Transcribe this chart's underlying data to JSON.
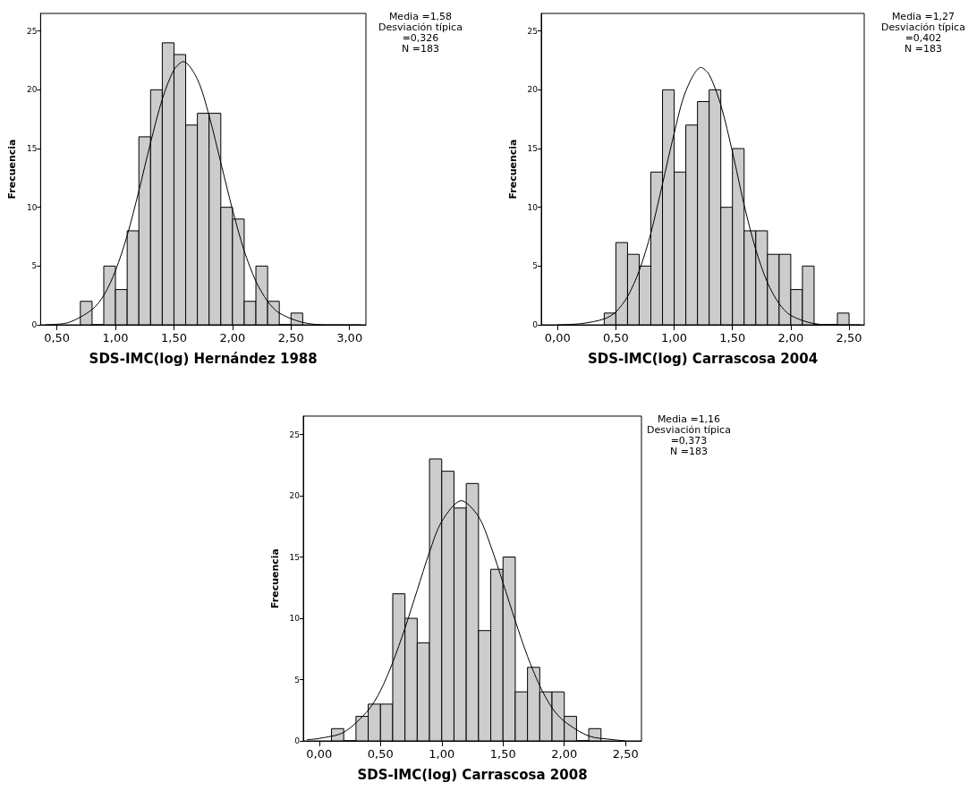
{
  "chart_data": [
    {
      "type": "histogram",
      "xlabel": "SDS-IMC(log) Hernández 1988",
      "ylabel": "Frecuencia",
      "annotations": [
        "Media =1,58\nDesviación típica\n=0,326\nN =183"
      ],
      "xlim": [
        0.36,
        3.14
      ],
      "ylim": [
        0,
        26.5
      ],
      "xticks": [
        {
          "value": 0.5,
          "label": "0,50"
        },
        {
          "value": 1,
          "label": "1,00"
        },
        {
          "value": 1.5,
          "label": "1,50"
        },
        {
          "value": 2,
          "label": "2,00"
        },
        {
          "value": 2.5,
          "label": "2,50"
        },
        {
          "value": 3,
          "label": "3,00"
        }
      ],
      "yticks": [
        0,
        5,
        10,
        15,
        20,
        25
      ],
      "grid": false,
      "series": [
        {
          "color": "#cccccc",
          "bins": [
            0.7,
            0.8,
            0.9,
            1.0,
            1.1,
            1.2,
            1.3,
            1.4,
            1.5,
            1.6,
            1.7,
            1.8,
            1.9,
            2.0,
            2.1,
            2.2,
            2.3,
            2.4,
            2.5,
            2.6
          ],
          "values": [
            2,
            0,
            5,
            3,
            8,
            16,
            20,
            24,
            23,
            17,
            18,
            18,
            10,
            9,
            2,
            5,
            2,
            0,
            1
          ]
        },
        {
          "type": "line",
          "color": "#000000",
          "marker": "none",
          "x": [
            0.4,
            0.6,
            0.8,
            0.9,
            1.0,
            1.1,
            1.2,
            1.3,
            1.4,
            1.5,
            1.58,
            1.7,
            1.8,
            1.9,
            2.0,
            2.1,
            2.2,
            2.3,
            2.4,
            2.6,
            2.8,
            3.1
          ],
          "values": [
            0.0,
            0.2,
            1.3,
            2.5,
            4.6,
            7.6,
            11.4,
            15.5,
            19.2,
            21.7,
            22.4,
            20.9,
            17.8,
            13.8,
            9.8,
            6.3,
            3.7,
            2.0,
            1.0,
            0.2,
            0.0,
            0.0
          ]
        }
      ]
    },
    {
      "type": "histogram",
      "xlabel": "SDS-IMC(log) Carrascosa 2004",
      "ylabel": "Frecuencia",
      "annotations": [
        "Media =1,27\nDesviación típica\n=0,402\nN =183"
      ],
      "xlim": [
        -0.14,
        2.63
      ],
      "ylim": [
        0,
        26.5
      ],
      "xticks": [
        {
          "value": 0,
          "label": "0,00"
        },
        {
          "value": 0.5,
          "label": "0,50"
        },
        {
          "value": 1,
          "label": "1,00"
        },
        {
          "value": 1.5,
          "label": "1,50"
        },
        {
          "value": 2,
          "label": "2,00"
        },
        {
          "value": 2.5,
          "label": "2,50"
        }
      ],
      "yticks": [
        0,
        5,
        10,
        15,
        20,
        25
      ],
      "grid": false,
      "series": [
        {
          "color": "#cccccc",
          "bins": [
            0.4,
            0.5,
            0.6,
            0.7,
            0.8,
            0.9,
            1.0,
            1.1,
            1.2,
            1.3,
            1.4,
            1.5,
            1.6,
            1.7,
            1.8,
            1.9,
            2.0,
            2.1,
            2.2,
            2.3,
            2.4,
            2.5
          ],
          "values": [
            1,
            7,
            6,
            5,
            13,
            20,
            13,
            17,
            19,
            20,
            10,
            15,
            8,
            8,
            6,
            6,
            3,
            5,
            0,
            0,
            1
          ]
        },
        {
          "type": "line",
          "color": "#000000",
          "marker": "none",
          "x": [
            0.0,
            0.2,
            0.4,
            0.5,
            0.6,
            0.7,
            0.8,
            0.9,
            1.0,
            1.1,
            1.23,
            1.3,
            1.4,
            1.5,
            1.6,
            1.7,
            1.8,
            1.9,
            2.0,
            2.2,
            2.4,
            2.6
          ],
          "values": [
            0.0,
            0.1,
            0.5,
            1.1,
            2.4,
            4.6,
            7.8,
            12.0,
            16.3,
            19.9,
            21.9,
            21.3,
            18.7,
            14.7,
            10.2,
            6.4,
            3.6,
            1.8,
            0.8,
            0.1,
            0.0,
            0.0
          ]
        }
      ]
    },
    {
      "type": "histogram",
      "xlabel": "SDS-IMC(log) Carrascosa 2008",
      "ylabel": "Frecuencia",
      "annotations": [
        "Media =1,16\nDesviación típica\n=0,373\nN =183"
      ],
      "xlim": [
        -0.13,
        2.63
      ],
      "ylim": [
        0,
        26.5
      ],
      "xticks": [
        {
          "value": 0,
          "label": "0,00"
        },
        {
          "value": 0.5,
          "label": "0,50"
        },
        {
          "value": 1,
          "label": "1,00"
        },
        {
          "value": 1.5,
          "label": "1,50"
        },
        {
          "value": 2,
          "label": "2,00"
        },
        {
          "value": 2.5,
          "label": "2,50"
        }
      ],
      "yticks": [
        0,
        5,
        10,
        15,
        20,
        25
      ],
      "grid": false,
      "series": [
        {
          "color": "#cccccc",
          "bins": [
            0.1,
            0.2,
            0.3,
            0.4,
            0.5,
            0.6,
            0.7,
            0.8,
            0.9,
            1.0,
            1.1,
            1.2,
            1.3,
            1.4,
            1.5,
            1.6,
            1.7,
            1.8,
            1.9,
            2.0,
            2.1,
            2.2,
            2.3
          ],
          "values": [
            1,
            0,
            2,
            3,
            3,
            12,
            10,
            8,
            23,
            22,
            19,
            21,
            9,
            14,
            15,
            4,
            6,
            4,
            4,
            2,
            0,
            1
          ]
        },
        {
          "type": "line",
          "color": "#000000",
          "marker": "none",
          "x": [
            -0.1,
            0.0,
            0.2,
            0.4,
            0.5,
            0.6,
            0.7,
            0.8,
            0.9,
            1.0,
            1.16,
            1.3,
            1.4,
            1.5,
            1.6,
            1.7,
            1.8,
            1.9,
            2.0,
            2.2,
            2.4,
            2.5
          ],
          "values": [
            0.1,
            0.2,
            0.7,
            2.5,
            4.1,
            6.4,
            9.2,
            12.3,
            15.4,
            17.9,
            19.6,
            18.3,
            15.9,
            12.9,
            9.8,
            6.9,
            4.5,
            2.7,
            1.6,
            0.4,
            0.1,
            0.0
          ]
        }
      ]
    }
  ]
}
